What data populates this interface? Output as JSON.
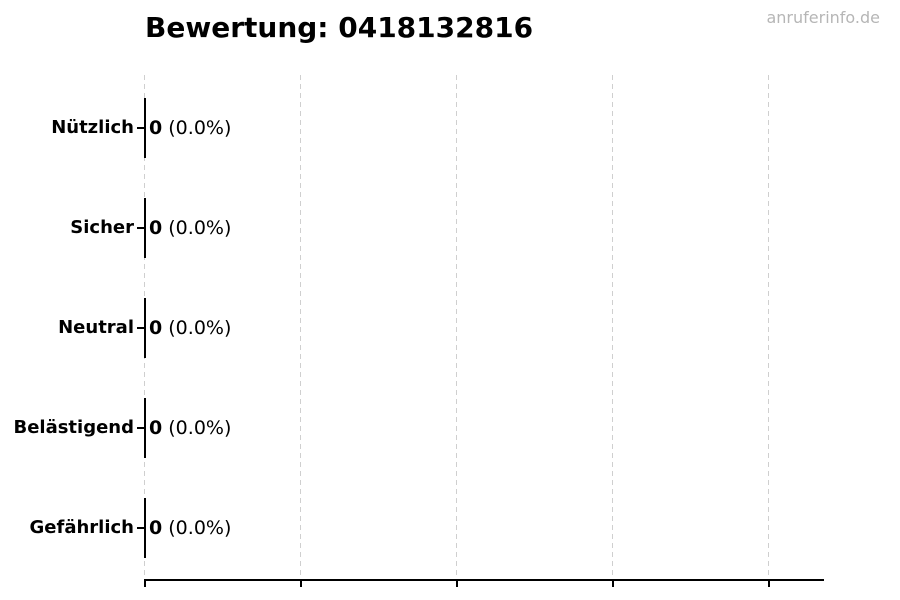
{
  "title": "Bewertung: 0418132816",
  "watermark": "anruferinfo.de",
  "chart_data": {
    "type": "bar",
    "orientation": "horizontal",
    "title": "Bewertung: 0418132816",
    "categories": [
      "Nützlich",
      "Sicher",
      "Neutral",
      "Belästigend",
      "Gefährlich"
    ],
    "values": [
      0,
      0,
      0,
      0,
      0
    ],
    "annotations": [
      {
        "value": "0",
        "percent": "(0.0%)"
      },
      {
        "value": "0",
        "percent": "(0.0%)"
      },
      {
        "value": "0",
        "percent": "(0.0%)"
      },
      {
        "value": "0",
        "percent": "(0.0%)"
      },
      {
        "value": "0",
        "percent": "(0.0%)"
      }
    ],
    "xlabel": "",
    "ylabel": "",
    "x_tick_labels": [],
    "grid": {
      "axis": "x",
      "style": "dashed",
      "gridline_count": 5
    },
    "legend": null,
    "colors": {
      "background": "#ffffff",
      "text": "#000000",
      "bar_edge": "#000000",
      "axis": "#000000",
      "grid": "#cfcfcf",
      "watermark": "#b6b6b6"
    }
  }
}
